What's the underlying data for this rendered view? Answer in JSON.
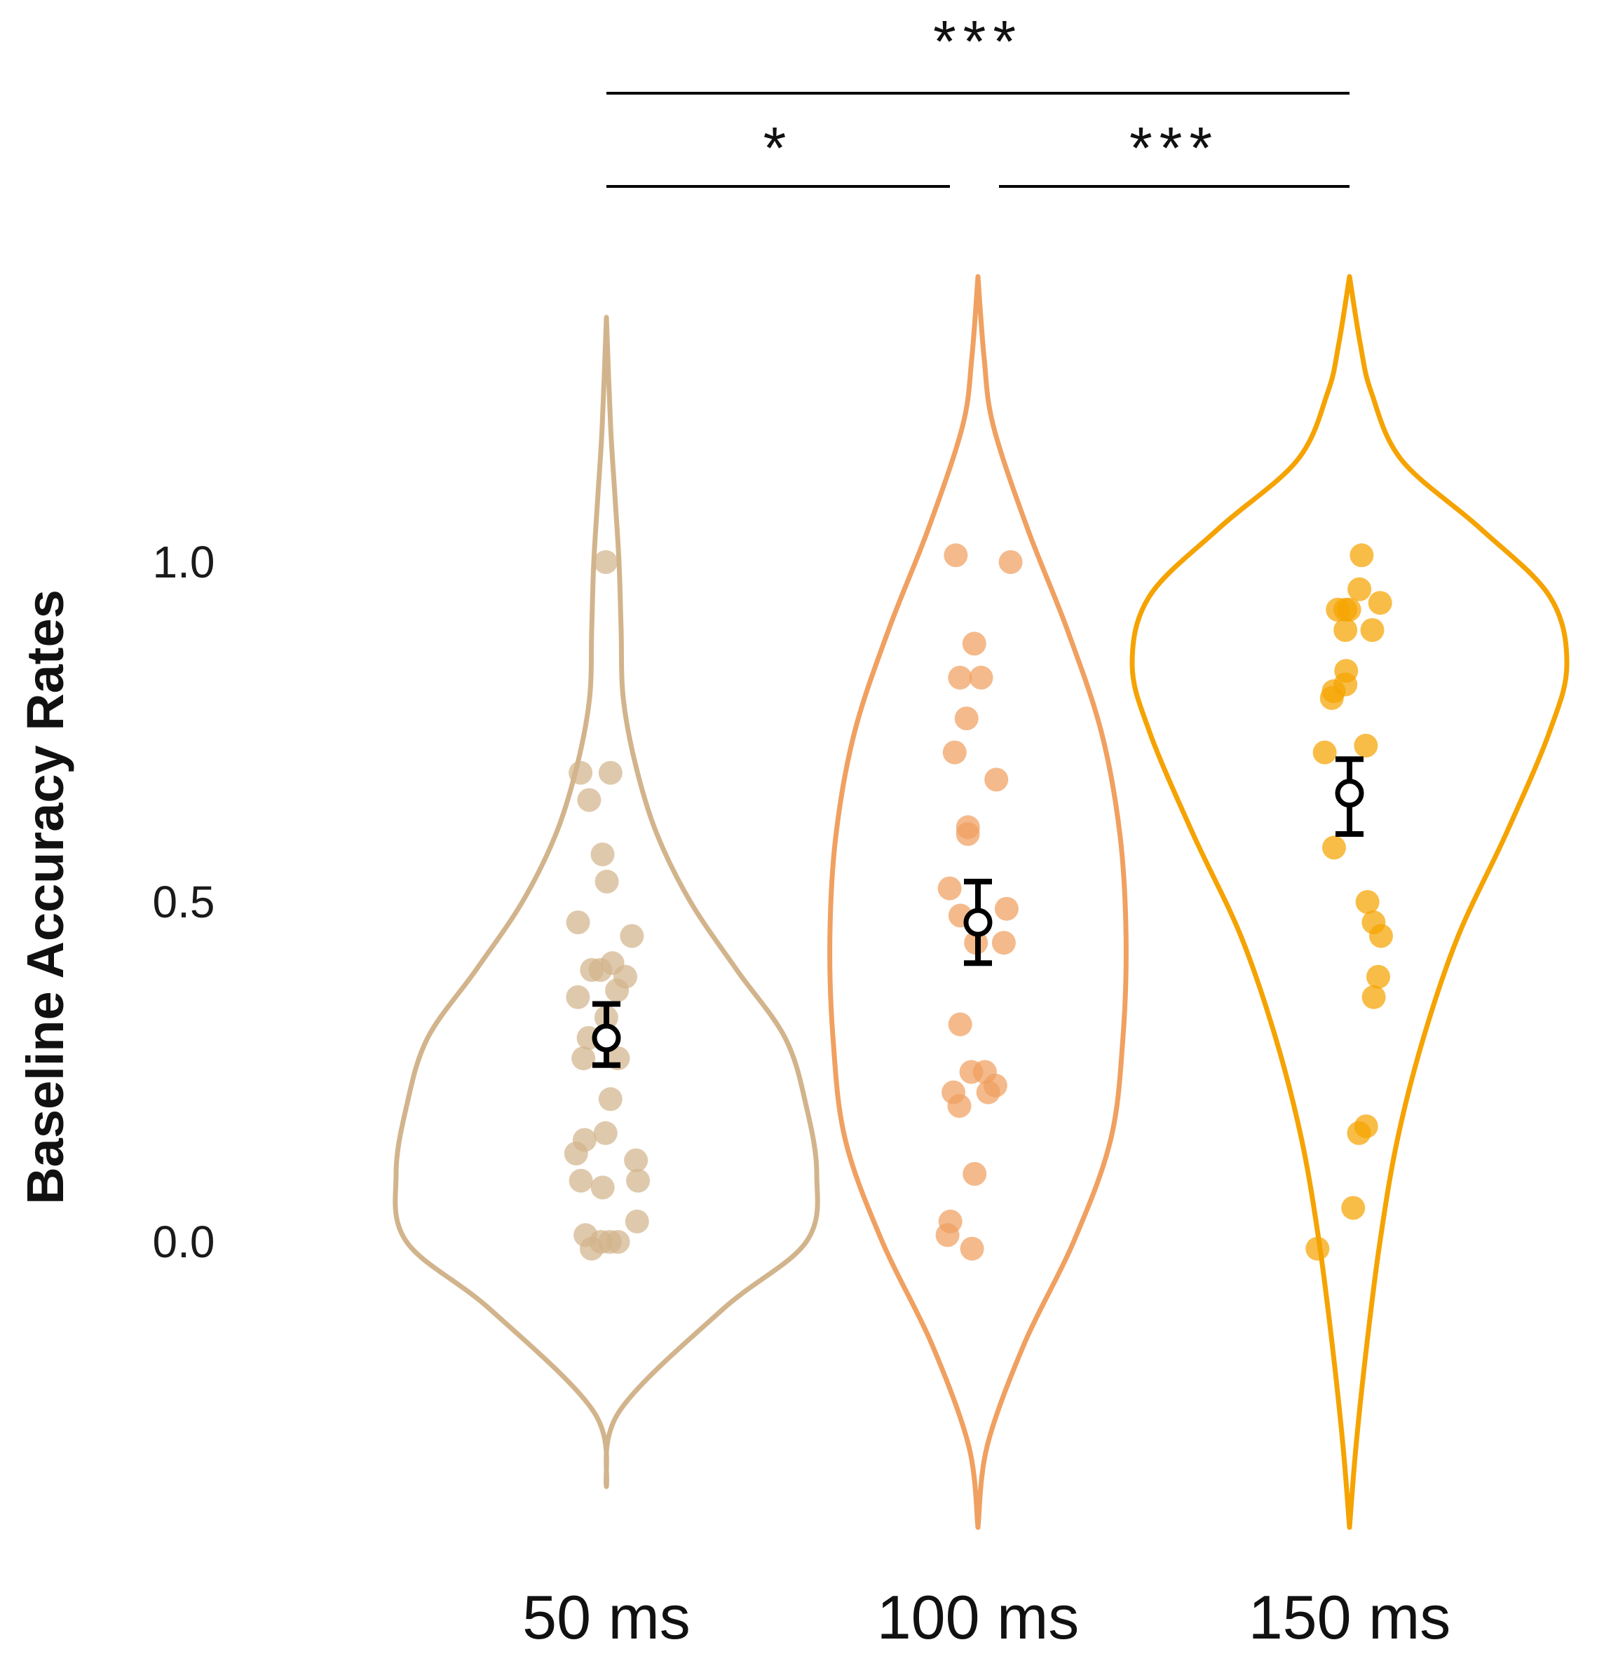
{
  "chart_data": {
    "type": "violin",
    "title": "",
    "xlabel": "",
    "ylabel": "Baseline Accuracy Rates",
    "ylim": [
      -0.37,
      1.5
    ],
    "yticks": [
      {
        "value": 0.0,
        "label": "0.0"
      },
      {
        "value": 0.5,
        "label": "0.5"
      },
      {
        "value": 1.0,
        "label": "1.0"
      }
    ],
    "categories": [
      "50 ms",
      "100 ms",
      "150 ms"
    ],
    "series": [
      {
        "name": "50 ms",
        "color": "#D2B48C",
        "mean": 0.3,
        "error": [
          0.26,
          0.35
        ],
        "violin_range": [
          -0.36,
          1.36
        ],
        "density_profile": [
          {
            "y": -0.36,
            "w": 0.0
          },
          {
            "y": -0.25,
            "w": 0.06
          },
          {
            "y": -0.1,
            "w": 0.55
          },
          {
            "y": 0.0,
            "w": 0.95
          },
          {
            "y": 0.1,
            "w": 1.0
          },
          {
            "y": 0.2,
            "w": 0.95
          },
          {
            "y": 0.3,
            "w": 0.85
          },
          {
            "y": 0.4,
            "w": 0.62
          },
          {
            "y": 0.5,
            "w": 0.4
          },
          {
            "y": 0.6,
            "w": 0.24
          },
          {
            "y": 0.7,
            "w": 0.14
          },
          {
            "y": 0.8,
            "w": 0.08
          },
          {
            "y": 0.9,
            "w": 0.07
          },
          {
            "y": 1.0,
            "w": 0.06
          },
          {
            "y": 1.1,
            "w": 0.04
          },
          {
            "y": 1.2,
            "w": 0.02
          },
          {
            "y": 1.36,
            "w": 0.0
          }
        ],
        "points": [
          1.0,
          0.69,
          0.69,
          0.65,
          0.57,
          0.53,
          0.47,
          0.45,
          0.41,
          0.4,
          0.4,
          0.39,
          0.37,
          0.36,
          0.33,
          0.3,
          0.27,
          0.27,
          0.21,
          0.16,
          0.15,
          0.13,
          0.12,
          0.09,
          0.09,
          0.08,
          0.03,
          0.01,
          0.0,
          0.0,
          0.0,
          -0.01
        ]
      },
      {
        "name": "100 ms",
        "color": "#F0A060",
        "mean": 0.47,
        "error": [
          0.41,
          0.53
        ],
        "violin_range": [
          -0.42,
          1.42
        ],
        "density_profile": [
          {
            "y": -0.42,
            "w": 0.0
          },
          {
            "y": -0.3,
            "w": 0.06
          },
          {
            "y": -0.15,
            "w": 0.3
          },
          {
            "y": 0.0,
            "w": 0.62
          },
          {
            "y": 0.15,
            "w": 0.86
          },
          {
            "y": 0.3,
            "w": 0.94
          },
          {
            "y": 0.45,
            "w": 0.96
          },
          {
            "y": 0.6,
            "w": 0.92
          },
          {
            "y": 0.75,
            "w": 0.8
          },
          {
            "y": 0.9,
            "w": 0.58
          },
          {
            "y": 1.05,
            "w": 0.32
          },
          {
            "y": 1.2,
            "w": 0.1
          },
          {
            "y": 1.3,
            "w": 0.04
          },
          {
            "y": 1.42,
            "w": 0.0
          }
        ],
        "points": [
          1.01,
          1.0,
          0.88,
          0.83,
          0.83,
          0.77,
          0.72,
          0.68,
          0.61,
          0.6,
          0.52,
          0.49,
          0.48,
          0.44,
          0.44,
          0.32,
          0.25,
          0.25,
          0.23,
          0.22,
          0.22,
          0.2,
          0.1,
          0.03,
          0.01,
          -0.01
        ]
      },
      {
        "name": "150 ms",
        "color": "#F5A300",
        "mean": 0.66,
        "error": [
          0.6,
          0.71
        ],
        "violin_range": [
          -0.42,
          1.42
        ],
        "density_profile": [
          {
            "y": -0.42,
            "w": 0.0
          },
          {
            "y": -0.3,
            "w": 0.03
          },
          {
            "y": -0.15,
            "w": 0.08
          },
          {
            "y": 0.0,
            "w": 0.14
          },
          {
            "y": 0.15,
            "w": 0.22
          },
          {
            "y": 0.3,
            "w": 0.34
          },
          {
            "y": 0.45,
            "w": 0.5
          },
          {
            "y": 0.6,
            "w": 0.72
          },
          {
            "y": 0.75,
            "w": 0.92
          },
          {
            "y": 0.85,
            "w": 1.0
          },
          {
            "y": 0.95,
            "w": 0.92
          },
          {
            "y": 1.05,
            "w": 0.6
          },
          {
            "y": 1.15,
            "w": 0.24
          },
          {
            "y": 1.25,
            "w": 0.1
          },
          {
            "y": 1.32,
            "w": 0.05
          },
          {
            "y": 1.42,
            "w": 0.0
          }
        ],
        "points": [
          1.01,
          0.96,
          0.94,
          0.93,
          0.93,
          0.93,
          0.9,
          0.9,
          0.84,
          0.82,
          0.81,
          0.8,
          0.73,
          0.72,
          0.58,
          0.5,
          0.47,
          0.45,
          0.39,
          0.36,
          0.17,
          0.16,
          0.05,
          -0.01
        ]
      }
    ],
    "significance": [
      {
        "from": "50 ms",
        "to": "150 ms",
        "label": "***",
        "level": 2
      },
      {
        "from": "50 ms",
        "to": "100 ms",
        "label": "*",
        "level": 1
      },
      {
        "from": "100 ms",
        "to": "150 ms",
        "label": "***",
        "level": 1
      }
    ]
  }
}
